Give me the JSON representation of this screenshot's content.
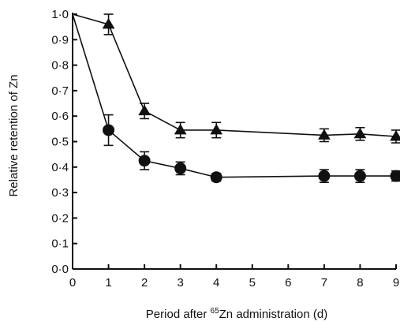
{
  "chart_data": {
    "type": "line",
    "xlabel_prefix": "Period after ",
    "xlabel_isotope": "65",
    "xlabel_suffix": "Zn administration (d)",
    "ylabel": "Relative retention of Zn",
    "x_ticks": [
      "0",
      "1",
      "2",
      "3",
      "4",
      "5",
      "6",
      "7",
      "8",
      "9"
    ],
    "y_ticks": [
      "0·0",
      "0·1",
      "0·2",
      "0·3",
      "0·4",
      "0·5",
      "0·6",
      "0·7",
      "0·8",
      "0·9",
      "1·0"
    ],
    "xlim": [
      0,
      9
    ],
    "ylim": [
      0,
      1.0
    ],
    "series": [
      {
        "marker": "triangle",
        "points": [
          {
            "x": 0,
            "y": 1.0,
            "err": 0
          },
          {
            "x": 1,
            "y": 0.96,
            "err": 0.04
          },
          {
            "x": 2,
            "y": 0.62,
            "err": 0.03
          },
          {
            "x": 3,
            "y": 0.545,
            "err": 0.03
          },
          {
            "x": 4,
            "y": 0.545,
            "err": 0.03
          },
          {
            "x": 7,
            "y": 0.525,
            "err": 0.025
          },
          {
            "x": 8,
            "y": 0.53,
            "err": 0.025
          },
          {
            "x": 9,
            "y": 0.52,
            "err": 0.025
          }
        ]
      },
      {
        "marker": "circle",
        "points": [
          {
            "x": 0,
            "y": 1.0,
            "err": 0
          },
          {
            "x": 1,
            "y": 0.545,
            "err": 0.06
          },
          {
            "x": 2,
            "y": 0.425,
            "err": 0.035
          },
          {
            "x": 3,
            "y": 0.395,
            "err": 0.025
          },
          {
            "x": 4,
            "y": 0.36,
            "err": 0.015
          },
          {
            "x": 7,
            "y": 0.365,
            "err": 0.025
          },
          {
            "x": 8,
            "y": 0.365,
            "err": 0.025
          },
          {
            "x": 9,
            "y": 0.365,
            "err": 0.02
          }
        ]
      }
    ],
    "grid": false,
    "legend": "none"
  }
}
